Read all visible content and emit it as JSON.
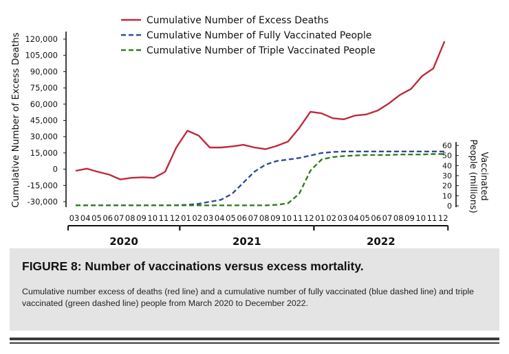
{
  "chart_data": {
    "type": "line",
    "title": "",
    "ylabel": "Cumulative Number of Excess Deaths",
    "y2label": "Vaccinated People (millions)",
    "ylim": [
      -30000,
      120000
    ],
    "y2lim": [
      0,
      60
    ],
    "yticks": [
      "120,000",
      "105,000",
      "90,000",
      "75,000",
      "60,000",
      "45,000",
      "30,000",
      "15,000",
      "0",
      "-15,000",
      "-30,000"
    ],
    "y2ticks": [
      "60",
      "50",
      "40",
      "30",
      "20",
      "10",
      "0"
    ],
    "x": [
      "2020-03",
      "2020-04",
      "2020-05",
      "2020-06",
      "2020-07",
      "2020-08",
      "2020-09",
      "2020-10",
      "2020-11",
      "2020-12",
      "2021-01",
      "2021-02",
      "2021-03",
      "2021-04",
      "2021-05",
      "2021-06",
      "2021-07",
      "2021-08",
      "2021-09",
      "2021-10",
      "2021-11",
      "2021-12",
      "2022-01",
      "2022-02",
      "2022-03",
      "2022-04",
      "2022-05",
      "2022-06",
      "2022-07",
      "2022-08",
      "2022-09",
      "2022-10",
      "2022-11",
      "2022-12"
    ],
    "month_labels": [
      "03",
      "04",
      "05",
      "06",
      "07",
      "08",
      "09",
      "10",
      "11",
      "12",
      "01",
      "02",
      "03",
      "04",
      "05",
      "06",
      "07",
      "08",
      "09",
      "10",
      "11",
      "12",
      "01",
      "02",
      "03",
      "04",
      "05",
      "06",
      "07",
      "08",
      "09",
      "10",
      "11",
      "12"
    ],
    "years": [
      {
        "label": "2020",
        "start": 0,
        "end": 9
      },
      {
        "label": "2021",
        "start": 10,
        "end": 21
      },
      {
        "label": "2022",
        "start": 22,
        "end": 33
      }
    ],
    "series": [
      {
        "name": "Cumulative Number of Excess Deaths",
        "axis": "left",
        "style": "solid",
        "color": "#c0283c",
        "values": [
          -1500,
          500,
          -2500,
          -5000,
          -9500,
          -8000,
          -7500,
          -8000,
          -2500,
          20000,
          35500,
          31000,
          20000,
          20000,
          21000,
          22500,
          20000,
          18500,
          21500,
          25500,
          38000,
          53000,
          51500,
          47000,
          46000,
          49500,
          50500,
          54000,
          60500,
          68500,
          74000,
          86000,
          93000,
          118000
        ]
      },
      {
        "name": "Cumulative Number of Fully Vaccinated People",
        "axis": "right",
        "style": "dashed",
        "color": "#2f4a9a",
        "values": [
          0.5,
          0.5,
          0.5,
          0.5,
          0.5,
          0.5,
          0.5,
          0.5,
          0.5,
          0.6,
          1.0,
          2.0,
          4.0,
          6.0,
          12.0,
          23.0,
          34.0,
          41.0,
          44.5,
          46.0,
          47.5,
          50.0,
          52.5,
          53.5,
          54.0,
          54.0,
          54.0,
          54.0,
          54.0,
          54.0,
          54.0,
          54.0,
          54.0,
          54.0
        ]
      },
      {
        "name": "Cumulative Number of Triple Vaccinated People",
        "axis": "right",
        "style": "dashed",
        "color": "#2e7d1f",
        "values": [
          0.5,
          0.5,
          0.5,
          0.5,
          0.5,
          0.5,
          0.5,
          0.5,
          0.5,
          0.5,
          0.5,
          0.5,
          0.5,
          0.5,
          0.5,
          0.5,
          0.5,
          0.5,
          1.0,
          2.5,
          12.0,
          35.0,
          46.0,
          48.5,
          49.5,
          50.0,
          50.5,
          50.5,
          50.5,
          51.0,
          51.0,
          51.0,
          51.5,
          51.5
        ]
      }
    ],
    "legend": "top-left",
    "grid": false
  },
  "caption": {
    "title": "FIGURE 8: Number of vaccinations versus excess mortality.",
    "text": "Cumulative number excess of deaths (red line) and a cumulative number of fully vaccinated (blue dashed line) and triple vaccinated (green dashed line) people from March 2020 to December 2022."
  }
}
